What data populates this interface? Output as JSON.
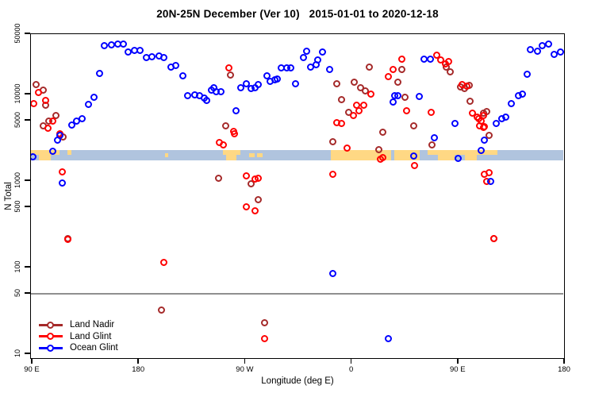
{
  "title": "20N-25N December (Ver 10)   2015-01-01 to 2020-12-18",
  "x_axis": {
    "label": "Longitude (deg E)",
    "min": 88.7,
    "max": 541.5,
    "ticks": [
      {
        "value": 90,
        "label": "90 E"
      },
      {
        "value": 180,
        "label": "180"
      },
      {
        "value": 270,
        "label": "90 W"
      },
      {
        "value": 360,
        "label": "0"
      },
      {
        "value": 450,
        "label": "90 E"
      },
      {
        "value": 540,
        "label": "180"
      }
    ]
  },
  "y_axis": {
    "label": "N Total",
    "scale": "log10",
    "min": 10,
    "max": 50000,
    "ticks": [
      {
        "value": 10,
        "label": "10"
      },
      {
        "value": 50,
        "label": "50"
      },
      {
        "value": 100,
        "label": "100"
      },
      {
        "value": 500,
        "label": "500"
      },
      {
        "value": 1000,
        "label": "1000"
      },
      {
        "value": 5000,
        "label": "5000"
      },
      {
        "value": 10000,
        "label": "10000"
      },
      {
        "value": 50000,
        "label": "50000"
      }
    ]
  },
  "reference_line": {
    "y_value": 50,
    "color": "#8f8f8f"
  },
  "map_band": {
    "description": "land/ocean strip map of the 20N-25N latitude band drawn across the plot near N=2000",
    "center_value": 2000,
    "ocean_color": "#B0C4DE",
    "land_color": "#FFD884",
    "land_segments": [
      {
        "from": 88.7,
        "to": 95.4,
        "part": "top"
      },
      {
        "from": 95.4,
        "to": 105.4,
        "part": "full"
      },
      {
        "from": 105.4,
        "to": 112.8,
        "part": "top"
      },
      {
        "from": 119.5,
        "to": 123.0,
        "part": "top"
      },
      {
        "from": 202.0,
        "to": 204.5,
        "part": "mid"
      },
      {
        "from": 250.9,
        "to": 253.6,
        "part": "top"
      },
      {
        "from": 253.6,
        "to": 262.4,
        "part": "full"
      },
      {
        "from": 262.4,
        "to": 265.7,
        "part": "top"
      },
      {
        "from": 273.0,
        "to": 277.8,
        "part": "mid"
      },
      {
        "from": 279.8,
        "to": 284.5,
        "part": "mid"
      },
      {
        "from": 342.2,
        "to": 393.1,
        "part": "full"
      },
      {
        "from": 395.8,
        "to": 417.3,
        "part": "full"
      },
      {
        "from": 424.0,
        "to": 432.7,
        "part": "top"
      },
      {
        "from": 432.7,
        "to": 446.8,
        "part": "full"
      },
      {
        "from": 446.8,
        "to": 455.5,
        "part": "top"
      },
      {
        "from": 455.5,
        "to": 465.6,
        "part": "full"
      },
      {
        "from": 465.6,
        "to": 483.0,
        "part": "top"
      }
    ]
  },
  "legend": {
    "items": [
      {
        "label": "Land Nadir",
        "color": "#A52A2A"
      },
      {
        "label": "Land Glint",
        "color": "#FF0000"
      },
      {
        "label": "Ocean Glint",
        "color": "#0000FF"
      }
    ]
  },
  "chart_data": {
    "type": "scatter",
    "title": "20N-25N December (Ver 10)   2015-01-01 to 2020-12-18",
    "xlabel": "Longitude (deg E)",
    "ylabel": "N Total",
    "x_note": "longitude in deg E, axis wraps 90E..180..90W..0..90E..180 (90 to 540)",
    "ylim": [
      10,
      50000
    ],
    "y_scale": "log",
    "legend_position": "bottom-left",
    "grid": false,
    "series": [
      {
        "name": "Land Nadir",
        "color": "#A52A2A",
        "marker": "open-circle",
        "points": [
          [
            93,
            13200
          ],
          [
            99,
            11400
          ],
          [
            101,
            7500
          ],
          [
            99,
            4400
          ],
          [
            104,
            4900
          ],
          [
            110,
            5800
          ],
          [
            116,
            3250
          ],
          [
            120,
            215
          ],
          [
            199,
            32
          ],
          [
            247,
            1070
          ],
          [
            253,
            4400
          ],
          [
            257,
            16800
          ],
          [
            275,
            940
          ],
          [
            281,
            615
          ],
          [
            286,
            23
          ],
          [
            344,
            2870
          ],
          [
            347,
            13450
          ],
          [
            351,
            8800
          ],
          [
            357,
            6200
          ],
          [
            362,
            14050
          ],
          [
            367,
            12150
          ],
          [
            371,
            11150
          ],
          [
            375,
            20700
          ],
          [
            383,
            2330
          ],
          [
            386,
            3700
          ],
          [
            399,
            14050
          ],
          [
            402,
            19400
          ],
          [
            405,
            9300
          ],
          [
            412,
            4400
          ],
          [
            428,
            2600
          ],
          [
            440,
            20700
          ],
          [
            443,
            18300
          ],
          [
            452,
            12400
          ],
          [
            455,
            11900
          ],
          [
            459,
            12900
          ],
          [
            460,
            8400
          ],
          [
            471,
            6100
          ],
          [
            474,
            6400
          ],
          [
            476,
            3400
          ],
          [
            480,
            215
          ]
        ]
      },
      {
        "name": "Land Glint",
        "color": "#FF0000",
        "marker": "open-circle",
        "points": [
          [
            91,
            7800
          ],
          [
            95,
            10500
          ],
          [
            101,
            8600
          ],
          [
            103,
            4100
          ],
          [
            107,
            5000
          ],
          [
            113,
            3500
          ],
          [
            115,
            1270
          ],
          [
            120,
            212
          ],
          [
            201,
            115
          ],
          [
            248,
            2780
          ],
          [
            251,
            2600
          ],
          [
            256,
            20300
          ],
          [
            260,
            3800
          ],
          [
            261,
            3550
          ],
          [
            271,
            1140
          ],
          [
            271,
            500
          ],
          [
            278,
            1050
          ],
          [
            278,
            450
          ],
          [
            281,
            1070
          ],
          [
            286,
            15
          ],
          [
            344,
            1190
          ],
          [
            347,
            4700
          ],
          [
            351,
            4600
          ],
          [
            356,
            2430
          ],
          [
            361,
            5700
          ],
          [
            364,
            7500
          ],
          [
            366,
            6450
          ],
          [
            370,
            7600
          ],
          [
            376,
            10200
          ],
          [
            384,
            1780
          ],
          [
            386,
            1890
          ],
          [
            391,
            16300
          ],
          [
            395,
            19400
          ],
          [
            402,
            25600
          ],
          [
            406,
            6450
          ],
          [
            413,
            1530
          ],
          [
            427,
            6300
          ],
          [
            432,
            28400
          ],
          [
            435,
            25100
          ],
          [
            439,
            22700
          ],
          [
            442,
            24200
          ],
          [
            453,
            13200
          ],
          [
            457,
            12600
          ],
          [
            462,
            6100
          ],
          [
            466,
            5500
          ],
          [
            467,
            5300
          ],
          [
            468,
            4400
          ],
          [
            469,
            4900
          ],
          [
            471,
            5800
          ],
          [
            471,
            4200
          ],
          [
            472,
            4250
          ],
          [
            472,
            1190
          ],
          [
            474,
            1000
          ],
          [
            476,
            1250
          ],
          [
            480,
            215
          ]
        ]
      },
      {
        "name": "Ocean Glint",
        "color": "#0000FF",
        "marker": "open-circle",
        "points": [
          [
            90,
            1900
          ],
          [
            107,
            2240
          ],
          [
            111,
            3000
          ],
          [
            113,
            3350
          ],
          [
            115,
            960
          ],
          [
            123,
            4500
          ],
          [
            127,
            4900
          ],
          [
            132,
            5300
          ],
          [
            137,
            7700
          ],
          [
            142,
            9400
          ],
          [
            147,
            17500
          ],
          [
            151,
            36600
          ],
          [
            157,
            38000
          ],
          [
            162,
            38500
          ],
          [
            167,
            38500
          ],
          [
            171,
            30900
          ],
          [
            176,
            32200
          ],
          [
            181,
            32200
          ],
          [
            186,
            26700
          ],
          [
            191,
            27200
          ],
          [
            197,
            27800
          ],
          [
            201,
            26700
          ],
          [
            207,
            20900
          ],
          [
            211,
            21800
          ],
          [
            217,
            16500
          ],
          [
            221,
            9700
          ],
          [
            227,
            9900
          ],
          [
            231,
            9700
          ],
          [
            235,
            9100
          ],
          [
            237,
            8500
          ],
          [
            241,
            11400
          ],
          [
            243,
            12150
          ],
          [
            245,
            10900
          ],
          [
            249,
            10900
          ],
          [
            262,
            6450
          ],
          [
            266,
            12150
          ],
          [
            271,
            13450
          ],
          [
            275,
            11900
          ],
          [
            278,
            12150
          ],
          [
            281,
            13200
          ],
          [
            288,
            16400
          ],
          [
            291,
            14200
          ],
          [
            295,
            14800
          ],
          [
            297,
            15100
          ],
          [
            300,
            20300
          ],
          [
            305,
            20300
          ],
          [
            308,
            20300
          ],
          [
            312,
            13450
          ],
          [
            319,
            26700
          ],
          [
            322,
            31700
          ],
          [
            325,
            20700
          ],
          [
            330,
            22000
          ],
          [
            331,
            25100
          ],
          [
            335,
            31000
          ],
          [
            341,
            19400
          ],
          [
            344,
            85
          ],
          [
            391,
            15
          ],
          [
            395,
            8200
          ],
          [
            396,
            9700
          ],
          [
            399,
            9700
          ],
          [
            412,
            1970
          ],
          [
            417,
            9500
          ],
          [
            421,
            25600
          ],
          [
            426,
            25600
          ],
          [
            430,
            3200
          ],
          [
            447,
            4600
          ],
          [
            450,
            1850
          ],
          [
            469,
            2250
          ],
          [
            472,
            3000
          ],
          [
            477,
            990
          ],
          [
            482,
            4600
          ],
          [
            487,
            5300
          ],
          [
            490,
            5500
          ],
          [
            495,
            7800
          ],
          [
            501,
            9700
          ],
          [
            504,
            10100
          ],
          [
            508,
            17200
          ],
          [
            511,
            33200
          ],
          [
            517,
            31700
          ],
          [
            521,
            36900
          ],
          [
            526,
            38500
          ],
          [
            531,
            29500
          ],
          [
            536,
            31000
          ]
        ]
      }
    ]
  }
}
